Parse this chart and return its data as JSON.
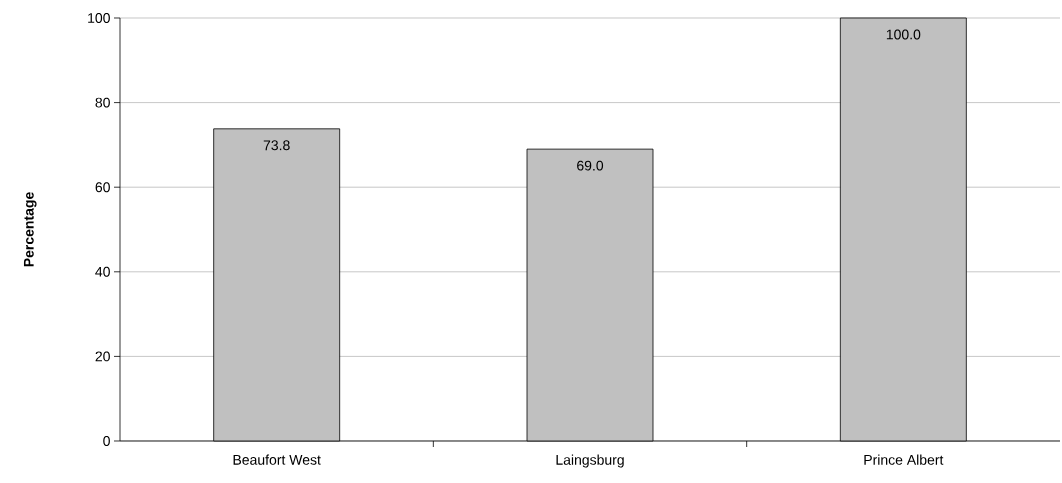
{
  "chart_data": {
    "type": "bar",
    "ylabel": "Percentage",
    "categories": [
      "Beaufort West",
      "Laingsburg",
      "Prince Albert"
    ],
    "values": [
      73.8,
      69.0,
      100.0
    ],
    "value_labels": [
      "73.8",
      "69.0",
      "100.0"
    ],
    "color": "#c0c0c0",
    "ylim": [
      0,
      100
    ],
    "yticks": [
      0,
      20,
      40,
      60,
      80,
      100
    ],
    "grid": "y"
  }
}
